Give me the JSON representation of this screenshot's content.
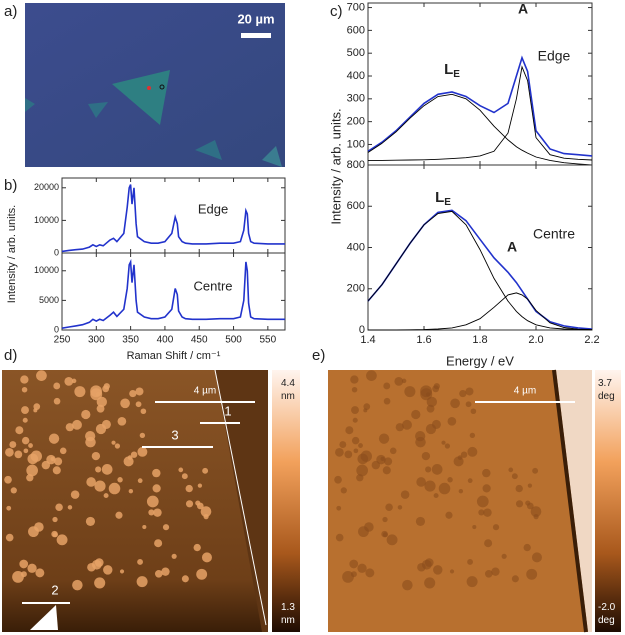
{
  "panel_labels": {
    "a": "a)",
    "b": "b)",
    "c": "c)",
    "d": "d)",
    "e": "e)"
  },
  "images": {
    "a": {
      "scale_bar": "20 µm"
    },
    "d": {
      "scale_bar": "4 µm",
      "profiles": [
        "1",
        "3",
        "2"
      ],
      "colorbar_top": [
        "4.4",
        "nm"
      ],
      "colorbar_bottom": [
        "1.3",
        "nm"
      ]
    },
    "e": {
      "scale_bar": "4 µm",
      "colorbar_top": [
        "3.7",
        "deg"
      ],
      "colorbar_bottom": [
        "-2.0",
        "deg"
      ]
    }
  },
  "chart_data": [
    {
      "type": "line",
      "y_label": "Intensity / arb. units.",
      "annotations": [
        "Edge"
      ],
      "x": [
        250,
        260,
        270,
        280,
        290,
        295,
        300,
        305,
        310,
        320,
        325,
        330,
        340,
        345,
        348,
        350,
        352,
        355,
        358,
        360,
        370,
        380,
        390,
        400,
        410,
        415,
        418,
        420,
        425,
        430,
        440,
        460,
        480,
        500,
        510,
        515,
        518,
        520,
        522,
        525,
        530,
        550,
        575
      ],
      "xlim": [
        250,
        575
      ],
      "xticks": [
        250,
        300,
        350,
        400,
        450,
        500,
        550
      ],
      "ylim": [
        0,
        23000
      ],
      "yticks": [
        0,
        10000,
        20000
      ],
      "series": [
        {
          "color": "#2233cc",
          "values": [
            500,
            800,
            1000,
            1200,
            1800,
            2500,
            2000,
            2500,
            2200,
            4000,
            4500,
            3500,
            6000,
            14000,
            20000,
            21000,
            15000,
            20000,
            9000,
            5000,
            3500,
            3000,
            3000,
            3500,
            6000,
            11000,
            9000,
            5000,
            3500,
            3000,
            2800,
            2800,
            3000,
            3000,
            3500,
            7000,
            13000,
            12000,
            6000,
            3500,
            3000,
            2800,
            2800
          ]
        }
      ]
    },
    {
      "type": "line",
      "x_label": "Raman Shift / cm⁻¹",
      "annotations": [
        "Centre"
      ],
      "x": [
        250,
        260,
        270,
        280,
        290,
        295,
        300,
        305,
        310,
        320,
        325,
        330,
        340,
        345,
        348,
        350,
        352,
        355,
        358,
        360,
        370,
        380,
        390,
        400,
        410,
        415,
        418,
        420,
        425,
        430,
        440,
        460,
        480,
        500,
        510,
        515,
        518,
        520,
        522,
        525,
        530,
        550,
        575
      ],
      "xlim": [
        250,
        575
      ],
      "xticks": [
        250,
        300,
        350,
        400,
        450,
        500,
        550
      ],
      "ylim": [
        0,
        13000
      ],
      "yticks": [
        0,
        5000,
        10000
      ],
      "series": [
        {
          "color": "#2233cc",
          "values": [
            300,
            500,
            700,
            900,
            1300,
            1800,
            1500,
            1800,
            1600,
            2500,
            3000,
            2300,
            3500,
            7000,
            11000,
            11500,
            8000,
            11000,
            5000,
            3000,
            2200,
            1900,
            1900,
            2200,
            3500,
            7000,
            6000,
            3200,
            2200,
            1900,
            1800,
            1800,
            1900,
            1900,
            2200,
            5000,
            11500,
            10000,
            4500,
            2200,
            1900,
            1800,
            1800
          ]
        }
      ]
    },
    {
      "type": "line",
      "y_label": "Intensity / arb. units.",
      "annotations": [
        {
          "text": "L",
          "sub": "E"
        },
        "A",
        "Edge"
      ],
      "x": [
        1.4,
        1.45,
        1.5,
        1.55,
        1.6,
        1.65,
        1.7,
        1.75,
        1.8,
        1.85,
        1.9,
        1.93,
        1.95,
        1.97,
        2.0,
        2.05,
        2.1,
        2.15,
        2.2
      ],
      "xlim": [
        1.4,
        2.2
      ],
      "xticks": [
        1.4,
        1.6,
        1.8,
        {
          "value": 2,
          "label": "2.0"
        },
        2.2
      ],
      "ylim": [
        10,
        720
      ],
      "yticks": [
        100,
        200,
        300,
        400,
        500,
        600,
        700
      ],
      "series": [
        {
          "color": "#2233cc",
          "values": [
            70,
            110,
            160,
            220,
            280,
            320,
            330,
            310,
            270,
            240,
            280,
            400,
            480,
            420,
            160,
            80,
            60,
            55,
            50
          ]
        },
        {
          "color": "#000000",
          "values": [
            65,
            105,
            155,
            215,
            270,
            310,
            320,
            300,
            250,
            180,
            120,
            90,
            75,
            62,
            45,
            30,
            20,
            15,
            10
          ]
        },
        {
          "color": "#000000",
          "values": [
            30,
            30,
            31,
            32,
            33,
            35,
            38,
            42,
            50,
            70,
            150,
            300,
            440,
            380,
            130,
            55,
            40,
            35,
            32
          ]
        }
      ]
    },
    {
      "type": "line",
      "x_label": "Energy / eV",
      "annotations": [
        {
          "text": "L",
          "sub": "E"
        },
        "A",
        "Centre"
      ],
      "x": [
        1.4,
        1.45,
        1.5,
        1.55,
        1.6,
        1.65,
        1.7,
        1.75,
        1.8,
        1.85,
        1.9,
        1.93,
        1.95,
        1.97,
        2.0,
        2.05,
        2.1,
        2.15,
        2.2
      ],
      "xlim": [
        1.4,
        2.2
      ],
      "xticks": [
        1.4,
        1.6,
        1.8,
        {
          "value": 2,
          "label": "2.0"
        },
        2.2
      ],
      "ylim": [
        0,
        800
      ],
      "yticks": [
        0,
        200,
        400,
        600,
        800
      ],
      "series": [
        {
          "color": "#2233cc",
          "values": [
            140,
            220,
            320,
            420,
            510,
            570,
            580,
            530,
            440,
            350,
            280,
            230,
            190,
            150,
            90,
            40,
            20,
            10,
            5
          ]
        },
        {
          "color": "#000000",
          "values": [
            140,
            220,
            320,
            420,
            510,
            565,
            575,
            510,
            390,
            250,
            140,
            90,
            65,
            45,
            25,
            10,
            5,
            2,
            1
          ]
        },
        {
          "color": "#000000",
          "values": [
            0,
            0,
            0,
            1,
            2,
            5,
            10,
            25,
            55,
            110,
            170,
            180,
            170,
            150,
            95,
            35,
            12,
            4,
            2
          ]
        }
      ]
    }
  ]
}
